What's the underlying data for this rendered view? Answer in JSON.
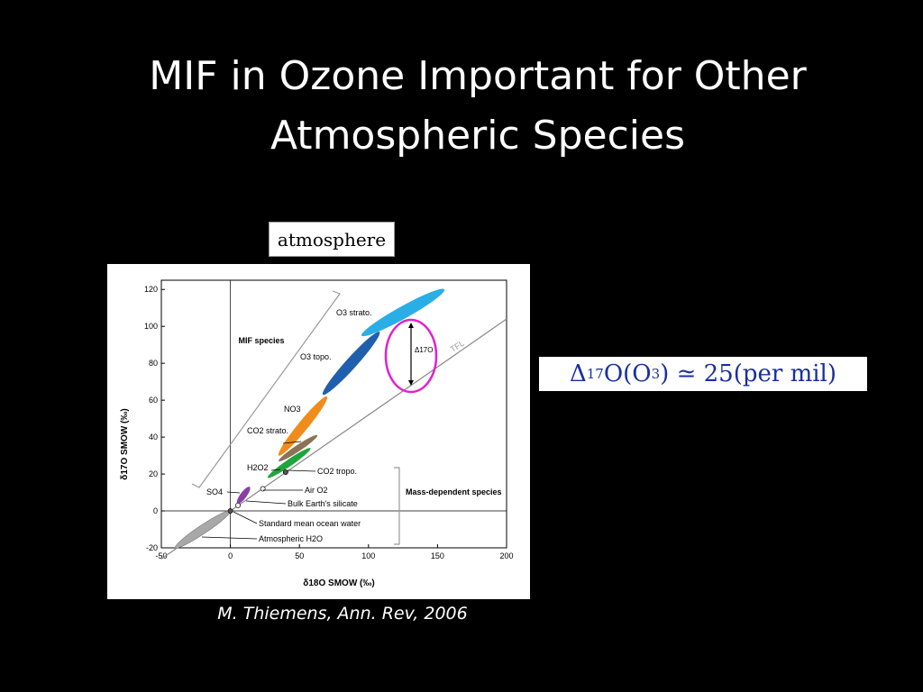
{
  "slide": {
    "title_line1": "MIF in Ozone Important for Other",
    "title_line2": "Atmospheric Species",
    "atmosphere_label": "atmosphere",
    "formula": "Δ17O(O3) ≃ 25(per mil)",
    "formula_parts": {
      "delta": "Δ",
      "sup": "17",
      "o": "O(O",
      "sub": "3",
      "tail": ") ≃ 25(per mil)"
    },
    "citation": "M. Thiemens, Ann. Rev, 2006",
    "colors": {
      "background": "#000000",
      "highlight_circle": "#e020d0",
      "formula_text": "#1a2fa0"
    }
  },
  "chart_data": {
    "type": "scatter",
    "xlabel": "δ18O SMOW (‰)",
    "ylabel": "δ17O SMOW (‰)",
    "xlim": [
      -50,
      200
    ],
    "ylim": [
      -20,
      125
    ],
    "xticks": [
      "-50",
      "0",
      "50",
      "100",
      "150",
      "200"
    ],
    "yticks": [
      "-20",
      "0",
      "20",
      "40",
      "60",
      "80",
      "100",
      "120"
    ],
    "xtick_values": [
      -50,
      0,
      50,
      100,
      150,
      200
    ],
    "ytick_values": [
      -20,
      0,
      20,
      40,
      60,
      80,
      100,
      120
    ],
    "lines": [
      {
        "name": "TFL",
        "slope": 0.52,
        "x_range": [
          -50,
          200
        ]
      }
    ],
    "regions": [
      {
        "name": "O3 strato.",
        "x_range": [
          95,
          155
        ],
        "y_range": [
          95,
          120
        ],
        "color": "#29aee6"
      },
      {
        "name": "O3 topo.",
        "x_range": [
          67,
          108
        ],
        "y_range": [
          63,
          97
        ],
        "color": "#1f5fae"
      },
      {
        "name": "NO3",
        "x_range": [
          35,
          70
        ],
        "y_range": [
          30,
          62
        ],
        "color": "#f08c1c"
      },
      {
        "name": "CO2 strato.",
        "x_range": [
          35,
          63
        ],
        "y_range": [
          27,
          41
        ],
        "color": "#8b7355"
      },
      {
        "name": "H2O2",
        "x_range": [
          27,
          58
        ],
        "y_range": [
          18,
          34
        ],
        "color": "#1ea63c"
      },
      {
        "name": "SO4",
        "x_range": [
          5,
          14
        ],
        "y_range": [
          4,
          13
        ],
        "color": "#8a3fa6"
      },
      {
        "name": "Atmospheric H2O",
        "x_range": [
          -40,
          0
        ],
        "y_range": [
          -20,
          0
        ],
        "color": "#a8a8a8"
      }
    ],
    "points": [
      {
        "name": "CO2 tropo.",
        "x": 40,
        "y": 21
      },
      {
        "name": "Air O2",
        "x": 23.5,
        "y": 12
      },
      {
        "name": "Bulk Earth's silicate",
        "x": 5.5,
        "y": 3
      },
      {
        "name": "Standard mean ocean water",
        "x": 0,
        "y": 0
      }
    ],
    "annotations": [
      {
        "text": "MIF species"
      },
      {
        "text": "Mass-dependent species"
      },
      {
        "text": "Δ17O"
      },
      {
        "text": "TFL"
      },
      {
        "text": "CO2 tropo."
      },
      {
        "text": "Air O2"
      },
      {
        "text": "Bulk Earth's silicate"
      },
      {
        "text": "Standard mean ocean water"
      },
      {
        "text": "Atmospheric H2O"
      }
    ],
    "grid": false,
    "legend": "none"
  }
}
